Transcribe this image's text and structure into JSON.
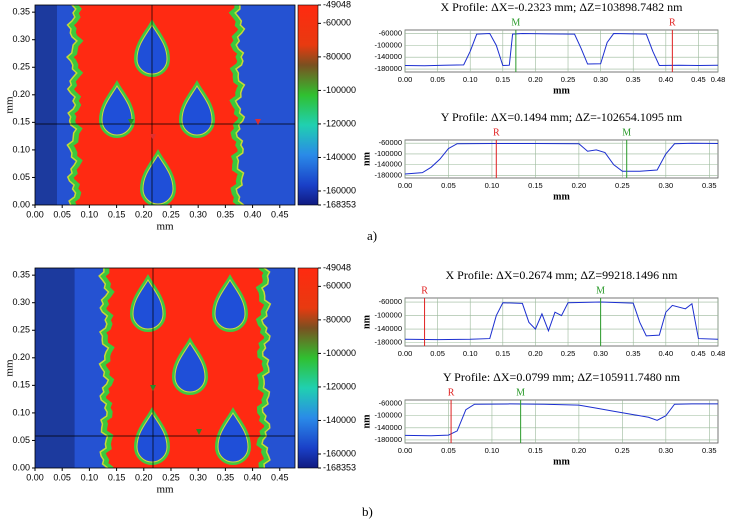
{
  "panel_labels": [
    "a)",
    "b)"
  ],
  "chart_data": [
    {
      "type": "heatmap",
      "xlabel": "mm",
      "ylabel": "mm",
      "xlim": [
        0,
        0.478
      ],
      "xticks": [
        {
          "value": 0,
          "label": "0.00"
        },
        0.05,
        {
          "value": 0.1,
          "label": "0.10"
        },
        0.15,
        {
          "value": 0.2,
          "label": "0.20"
        },
        0.25,
        {
          "value": 0.3,
          "label": "0.30"
        },
        0.35,
        {
          "value": 0.4,
          "label": "0.40"
        },
        0.45
      ],
      "ylim": [
        0,
        0.363
      ],
      "yticks": [
        {
          "value": 0,
          "label": "0.00"
        },
        0.05,
        {
          "value": 0.1,
          "label": "0.10"
        },
        0.15,
        {
          "value": 0.2,
          "label": "0.20"
        },
        0.25,
        {
          "value": 0.3,
          "label": "0.30"
        },
        0.35
      ],
      "zlim": [
        -168353,
        -49048
      ],
      "zticks": [
        -49048,
        -60000,
        -80000,
        -100000,
        -120000,
        -140000,
        -160000,
        -168353
      ]
    },
    {
      "type": "line",
      "title": "X Profile: ΔX=-0.2323 mm; ΔZ=103898.7482 nm",
      "xlabel": "mm",
      "color": "#1c2fd0",
      "grid": true,
      "xlim": [
        0,
        0.48
      ],
      "xticks": [
        {
          "value": 0,
          "label": "0.00"
        },
        0.05,
        {
          "value": 0.1,
          "label": "0.10"
        },
        0.15,
        {
          "value": 0.2,
          "label": "0.20"
        },
        0.25,
        {
          "value": 0.3,
          "label": "0.30"
        },
        0.35,
        {
          "value": 0.4,
          "label": "0.40"
        },
        0.45,
        0.48
      ],
      "ylim": [
        -190000,
        -48000
      ],
      "yticks": [
        -60000,
        -100000,
        -140000,
        -180000
      ],
      "x": [
        0,
        0.03,
        0.06,
        0.09,
        0.1,
        0.11,
        0.13,
        0.14,
        0.15,
        0.16,
        0.165,
        0.18,
        0.22,
        0.26,
        0.27,
        0.28,
        0.3,
        0.31,
        0.32,
        0.35,
        0.37,
        0.38,
        0.39,
        0.42,
        0.45,
        0.48
      ],
      "values": [
        -168000,
        -169000,
        -167000,
        -166000,
        -120000,
        -62000,
        -60000,
        -100000,
        -168000,
        -167000,
        -62000,
        -60000,
        -61000,
        -62000,
        -110000,
        -163000,
        -162000,
        -90000,
        -60000,
        -61000,
        -62000,
        -120000,
        -168000,
        -167000,
        -168000,
        -167000
      ],
      "cursors": [
        {
          "label": "M",
          "x": 0.17,
          "color": "#2a9a2a"
        },
        {
          "label": "R",
          "x": 0.41,
          "color": "#e02020"
        }
      ]
    },
    {
      "type": "line",
      "title": "Y Profile: ΔX=0.1494 mm; ΔZ=-102654.1095 nm",
      "xlabel": "mm",
      "ylabel": "nm",
      "color": "#1c2fd0",
      "grid": true,
      "xlim": [
        0,
        0.36
      ],
      "xticks": [
        {
          "value": 0,
          "label": "0.00"
        },
        0.05,
        {
          "value": 0.1,
          "label": "0.10"
        },
        0.15,
        {
          "value": 0.2,
          "label": "0.20"
        },
        0.25,
        {
          "value": 0.3,
          "label": "0.30"
        },
        0.35
      ],
      "ylim": [
        -190000,
        -48000
      ],
      "yticks": [
        -60000,
        -100000,
        -140000,
        -180000
      ],
      "x": [
        0,
        0.02,
        0.03,
        0.04,
        0.05,
        0.06,
        0.1,
        0.15,
        0.2,
        0.21,
        0.22,
        0.23,
        0.24,
        0.25,
        0.27,
        0.29,
        0.3,
        0.31,
        0.33,
        0.36
      ],
      "values": [
        -175000,
        -170000,
        -150000,
        -120000,
        -80000,
        -62000,
        -61000,
        -61000,
        -62000,
        -90000,
        -85000,
        -95000,
        -140000,
        -165000,
        -165000,
        -160000,
        -100000,
        -62000,
        -60000,
        -61000
      ],
      "cursors": [
        {
          "label": "R",
          "x": 0.105,
          "color": "#e02020"
        },
        {
          "label": "M",
          "x": 0.255,
          "color": "#2a9a2a"
        }
      ]
    },
    {
      "type": "heatmap",
      "xlabel": "mm",
      "ylabel": "mm",
      "xlim": [
        0,
        0.478
      ],
      "xticks": [
        {
          "value": 0,
          "label": "0.00"
        },
        0.05,
        {
          "value": 0.1,
          "label": "0.10"
        },
        0.15,
        {
          "value": 0.2,
          "label": "0.20"
        },
        0.25,
        {
          "value": 0.3,
          "label": "0.30"
        },
        0.35,
        {
          "value": 0.4,
          "label": "0.40"
        },
        0.45
      ],
      "ylim": [
        0,
        0.363
      ],
      "yticks": [
        {
          "value": 0,
          "label": "0.00"
        },
        0.05,
        {
          "value": 0.1,
          "label": "0.10"
        },
        0.15,
        {
          "value": 0.2,
          "label": "0.20"
        },
        0.25,
        {
          "value": 0.3,
          "label": "0.30"
        },
        0.35
      ],
      "zlim": [
        -168353,
        -49048
      ],
      "zticks": [
        -49048,
        -60000,
        -80000,
        -100000,
        -120000,
        -140000,
        -160000,
        -168353
      ]
    },
    {
      "type": "line",
      "title": "X Profile: ΔX=0.2674 mm; ΔZ=99218.1496 nm",
      "ylabel": "nm",
      "color": "#1c2fd0",
      "grid": true,
      "xlim": [
        0,
        0.48
      ],
      "xticks": [
        {
          "value": 0,
          "label": "0.00"
        },
        0.05,
        {
          "value": 0.1,
          "label": "0.10"
        },
        0.15,
        {
          "value": 0.2,
          "label": "0.20"
        },
        0.25,
        {
          "value": 0.3,
          "label": "0.30"
        },
        0.35,
        {
          "value": 0.4,
          "label": "0.40"
        },
        0.45,
        0.48
      ],
      "ylim": [
        -190000,
        -48000
      ],
      "yticks": [
        -60000,
        -100000,
        -140000,
        -180000
      ],
      "x": [
        0,
        0.05,
        0.1,
        0.13,
        0.14,
        0.15,
        0.18,
        0.19,
        0.2,
        0.21,
        0.22,
        0.23,
        0.24,
        0.25,
        0.3,
        0.35,
        0.36,
        0.37,
        0.39,
        0.4,
        0.41,
        0.43,
        0.44,
        0.45,
        0.48
      ],
      "values": [
        -170000,
        -171000,
        -170000,
        -168000,
        -100000,
        -62000,
        -64000,
        -120000,
        -140000,
        -95000,
        -145000,
        -90000,
        -100000,
        -62000,
        -60000,
        -63000,
        -120000,
        -160000,
        -158000,
        -90000,
        -70000,
        -80000,
        -65000,
        -168000,
        -170000
      ],
      "cursors": [
        {
          "label": "R",
          "x": 0.03,
          "color": "#e02020"
        },
        {
          "label": "M",
          "x": 0.3,
          "color": "#2a9a2a"
        }
      ]
    },
    {
      "type": "line",
      "title": "Y Profile: ΔX=0.0799 mm; ΔZ=105911.7480 nm",
      "xlabel": "mm",
      "ylabel": "nm",
      "color": "#1c2fd0",
      "grid": true,
      "xlim": [
        0,
        0.36
      ],
      "xticks": [
        {
          "value": 0,
          "label": "0.00"
        },
        0.05,
        {
          "value": 0.1,
          "label": "0.10"
        },
        0.15,
        {
          "value": 0.2,
          "label": "0.20"
        },
        0.25,
        {
          "value": 0.3,
          "label": "0.30"
        },
        0.35
      ],
      "ylim": [
        -190000,
        -48000
      ],
      "yticks": [
        -60000,
        -100000,
        -140000,
        -180000
      ],
      "x": [
        0,
        0.03,
        0.05,
        0.06,
        0.07,
        0.08,
        0.12,
        0.16,
        0.2,
        0.22,
        0.24,
        0.26,
        0.28,
        0.29,
        0.3,
        0.31,
        0.33,
        0.36
      ],
      "values": [
        -165000,
        -166000,
        -164000,
        -150000,
        -80000,
        -62000,
        -61000,
        -62000,
        -65000,
        -75000,
        -85000,
        -95000,
        -105000,
        -115000,
        -100000,
        -62000,
        -61000,
        -61000
      ],
      "cursors": [
        {
          "label": "R",
          "x": 0.053,
          "color": "#e02020"
        },
        {
          "label": "M",
          "x": 0.133,
          "color": "#2a9a2a"
        }
      ]
    }
  ]
}
